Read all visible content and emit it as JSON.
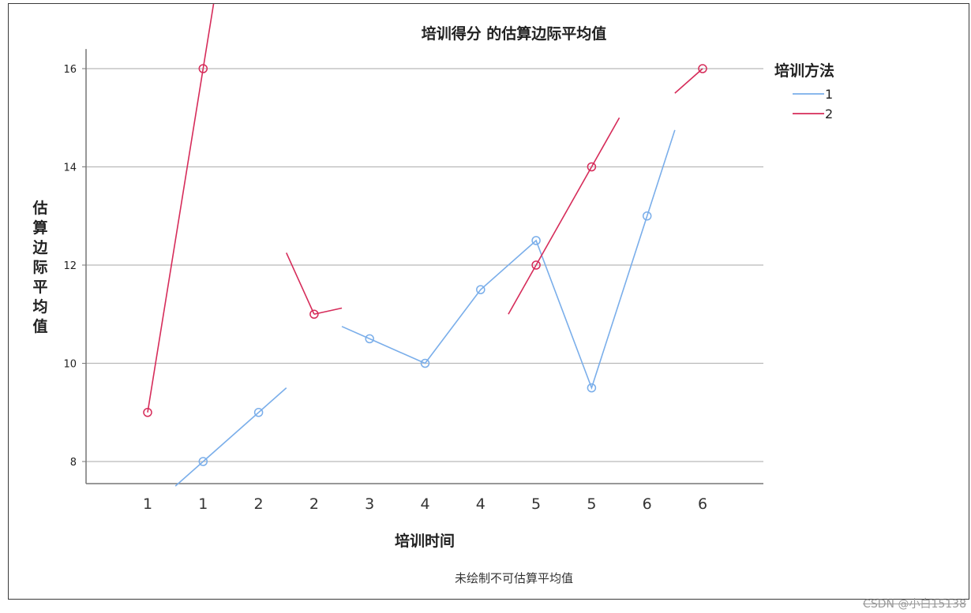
{
  "chart_data": {
    "type": "line",
    "title": "培训得分 的估算边际平均值",
    "xlabel": "培训时间",
    "ylabel": "估算边际平均值",
    "categories": [
      "1",
      "1",
      "2",
      "2",
      "3",
      "4",
      "4",
      "5",
      "5",
      "6",
      "6"
    ],
    "y_ticks": [
      8,
      10,
      12,
      14,
      16
    ],
    "ylim": [
      7.6,
      16.4
    ],
    "grid": "horizontal",
    "legend": {
      "title": "培训方法",
      "position": "top-right"
    },
    "series": [
      {
        "name": "1",
        "color": "#7aaeea",
        "values": [
          null,
          8,
          9,
          null,
          10.5,
          10,
          11.5,
          12.5,
          9.5,
          13,
          null
        ]
      },
      {
        "name": "2",
        "color": "#d62c5a",
        "values": [
          9,
          16,
          null,
          11,
          null,
          null,
          null,
          12,
          14,
          null,
          16
        ]
      }
    ],
    "footnote": "未绘制不可估算平均值"
  },
  "watermark": "CSDN @小白15138"
}
